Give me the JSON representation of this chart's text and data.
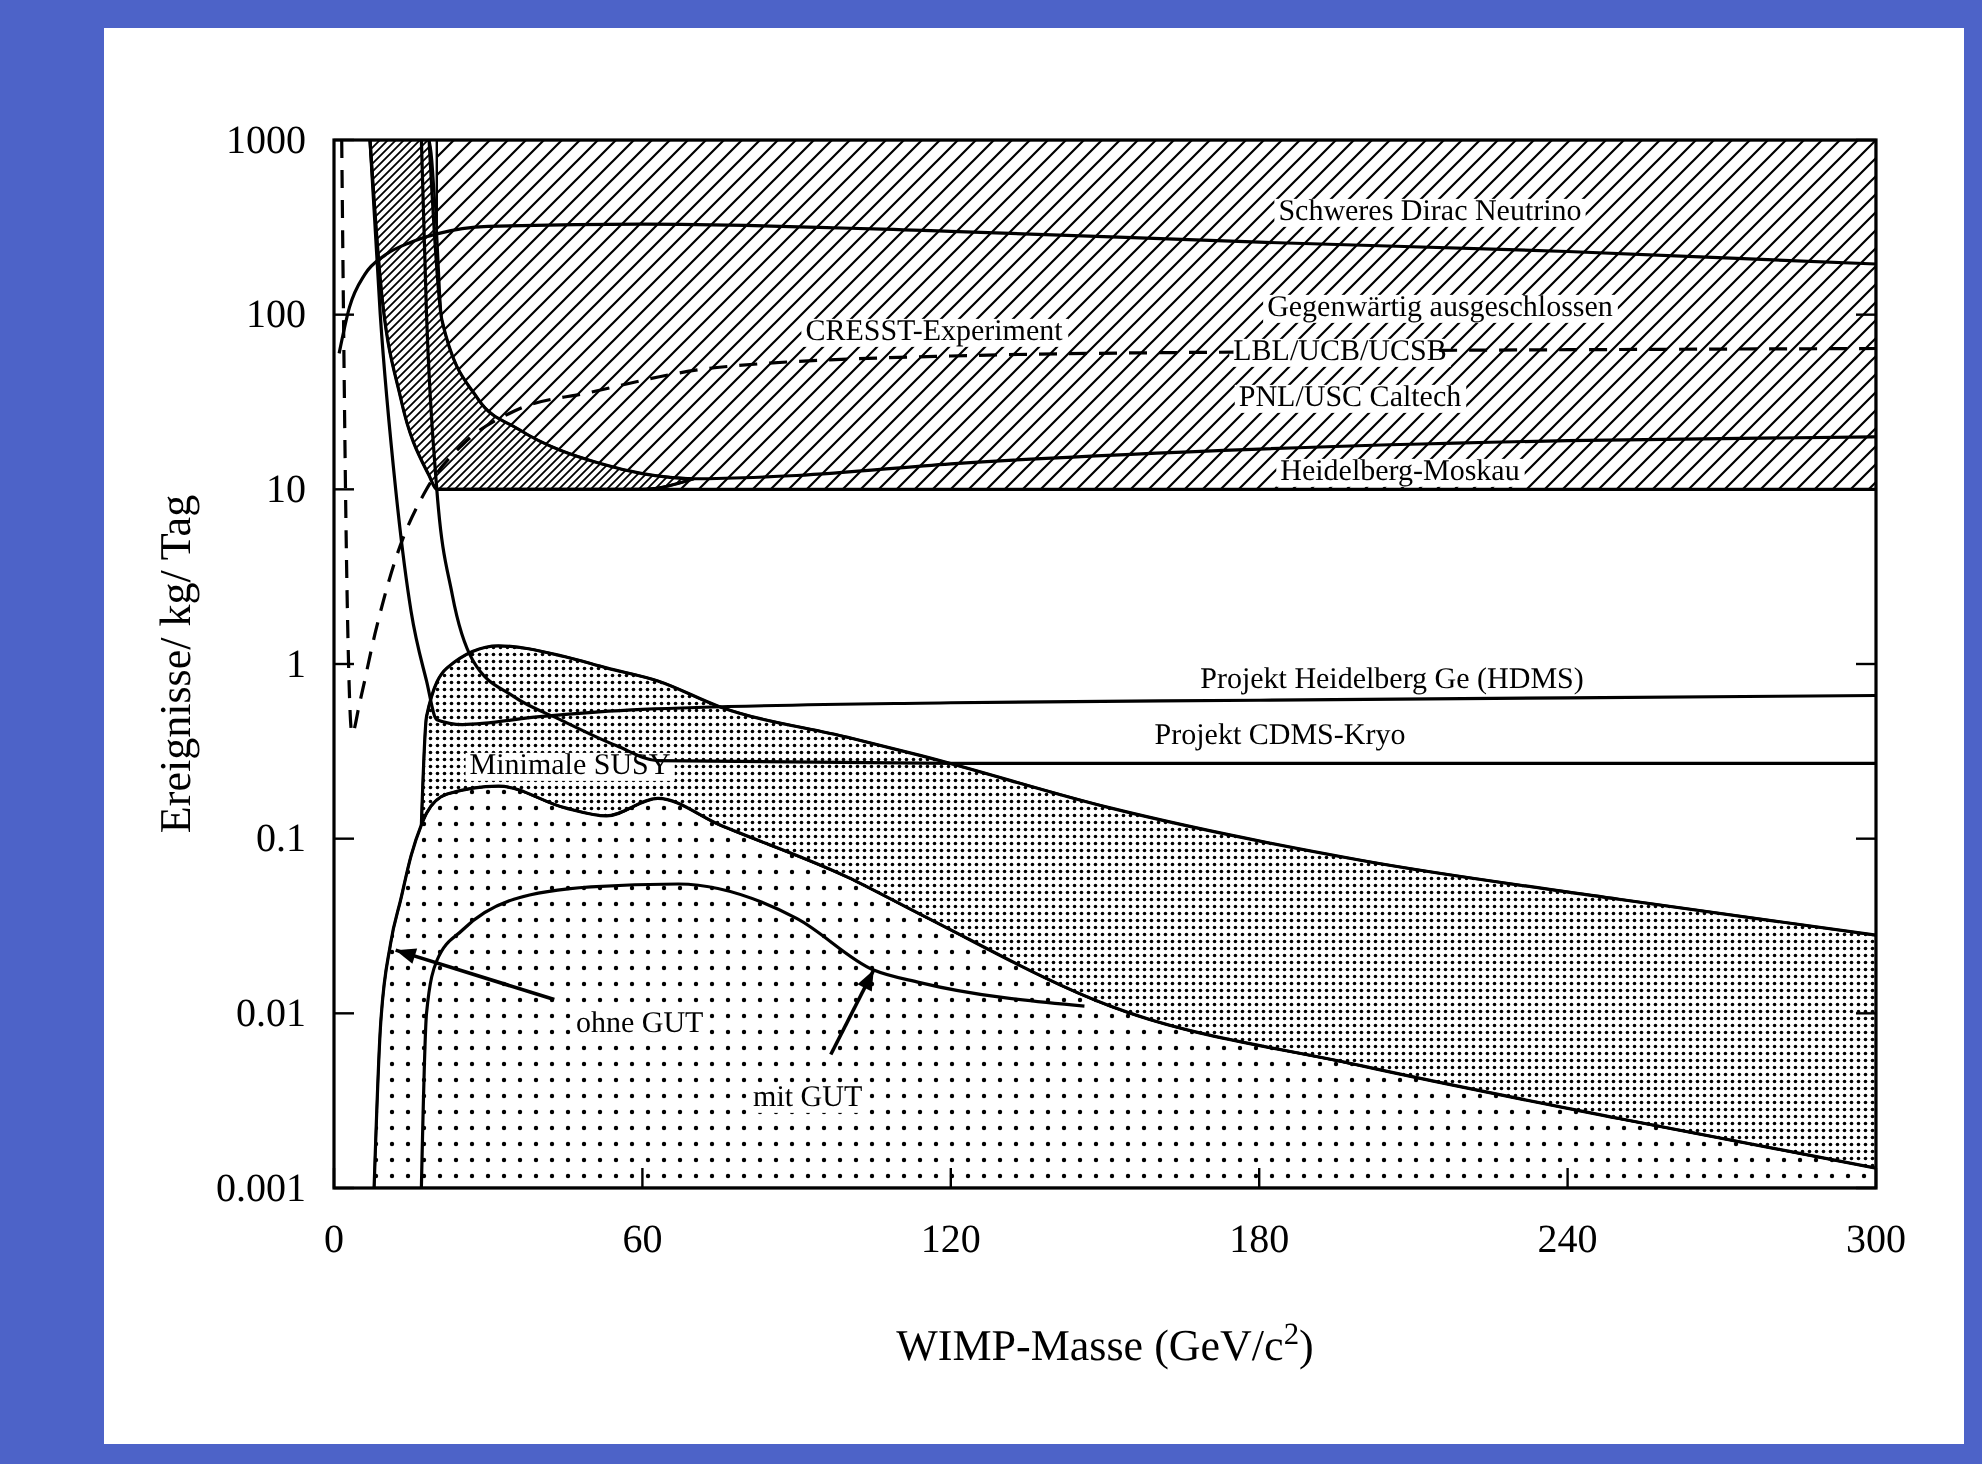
{
  "chart_data": {
    "type": "line",
    "xlabel": "WIMP-Masse (GeV/c$^{2}$)",
    "ylabel": "Ereignisse/ kg/ Tag",
    "log": "y",
    "xlim": [
      0,
      300
    ],
    "xticks": [
      0,
      60,
      120,
      180,
      240,
      300
    ],
    "ylim": [
      0.001,
      1000
    ],
    "yticks": [
      0.001,
      0.01,
      0.1,
      1,
      10,
      100,
      1000
    ],
    "grid": false,
    "series": [
      {
        "color": "#000000",
        "x": [
          20,
          300
        ],
        "values": [
          10,
          10
        ],
        "lower": [
          10,
          10
        ],
        "upper": [
          1000,
          1000
        ]
      },
      {
        "color": "#000000",
        "x": [
          7,
          9,
          13,
          18.5,
          20,
          21,
          28,
          36,
          52,
          60,
          70
        ],
        "values": [
          1000,
          160,
          33,
          12,
          10,
          10,
          10,
          10,
          10,
          10,
          11.5
        ],
        "lower": [
          1000,
          160,
          33,
          12,
          10,
          10,
          10,
          10,
          10,
          10,
          11.5
        ],
        "upper": [
          1000,
          1000,
          1000,
          1000,
          300,
          93,
          33,
          22,
          14,
          12.3,
          11.5
        ]
      },
      {
        "color": "#000000",
        "x": [
          7.8,
          9,
          11,
          13,
          15,
          17,
          18,
          22,
          32,
          45,
          53,
          63,
          75,
          100,
          114,
          151,
          200,
          250,
          300
        ],
        "values": [
          0.001,
          0.008,
          0.025,
          0.045,
          0.08,
          0.12,
          0.14,
          0.18,
          0.2,
          0.15,
          0.135,
          0.17,
          0.12,
          0.06,
          0.037,
          0.011,
          0.005,
          0.0025,
          0.0013
        ],
        "lower": [
          0.001,
          0.001,
          0.001,
          0.001,
          0.001,
          0.001,
          0.001,
          0.001,
          0.001,
          0.001,
          0.001,
          0.001,
          0.001,
          0.001,
          0.001,
          0.001,
          0.001,
          0.001,
          0.001
        ],
        "upper": [
          0.001,
          0.008,
          0.025,
          0.045,
          0.08,
          0.12,
          0.14,
          0.18,
          0.2,
          0.15,
          0.135,
          0.17,
          0.12,
          0.06,
          0.037,
          0.011,
          0.005,
          0.0025,
          0.0013
        ]
      },
      {
        "color": "#000000",
        "x": [
          17,
          18,
          22,
          32,
          45,
          53,
          63,
          75,
          100,
          114,
          151,
          200,
          250,
          300
        ],
        "values": [
          0.12,
          0.5,
          0.95,
          1.27,
          1.1,
          0.95,
          0.8,
          0.57,
          0.38,
          0.3,
          0.15,
          0.075,
          0.045,
          0.028
        ],
        "lower": [
          0.12,
          0.14,
          0.18,
          0.2,
          0.15,
          0.135,
          0.17,
          0.12,
          0.06,
          0.037,
          0.011,
          0.005,
          0.0025,
          0.0013
        ],
        "upper": [
          0.12,
          0.5,
          0.95,
          1.27,
          1.1,
          0.95,
          0.8,
          0.57,
          0.38,
          0.3,
          0.15,
          0.075,
          0.045,
          0.028
        ]
      },
      {
        "color": "#000000",
        "x": [
          18.5,
          21,
          28,
          36,
          52,
          60,
          70,
          90,
          120,
          180,
          240,
          300
        ],
        "values": [
          1000,
          93,
          33,
          22,
          14,
          12.3,
          11.5,
          12,
          14,
          17,
          19,
          20
        ]
      },
      {
        "color": "#000000",
        "x": [
          1,
          3,
          6,
          10,
          15,
          20,
          30,
          60,
          120,
          180,
          240,
          300
        ],
        "values": [
          60,
          110,
          170,
          220,
          260,
          290,
          320,
          330,
          300,
          260,
          230,
          195
        ]
      },
      {
        "color": "#000000",
        "line_style": "dashed",
        "x": [
          1.5,
          2.5,
          3.5,
          5,
          8,
          12,
          18,
          25,
          35,
          50,
          75,
          120,
          175,
          180,
          215,
          240,
          300
        ],
        "values": [
          1000,
          3,
          0.4,
          0.6,
          1.5,
          4,
          10,
          18,
          28,
          36,
          50,
          58,
          61,
          null,
          62.5,
          63,
          64
        ]
      },
      {
        "color": "#000000",
        "x": [
          7,
          9,
          12,
          15,
          18,
          20,
          25,
          40,
          60,
          120,
          180,
          240,
          300
        ],
        "values": [
          1000,
          100,
          10,
          2,
          0.8,
          0.48,
          0.45,
          0.5,
          0.55,
          0.6,
          0.62,
          0.64,
          0.66
        ]
      },
      {
        "color": "#000000",
        "x": [
          17,
          18,
          20,
          23,
          27,
          35,
          44,
          55,
          63,
          120,
          180,
          240,
          300
        ],
        "values": [
          1000,
          100,
          10,
          2.5,
          1.05,
          0.65,
          0.48,
          0.34,
          0.28,
          0.27,
          0.27,
          0.27,
          0.27
        ]
      },
      {
        "color": "#000000",
        "x": [
          17,
          18,
          20,
          25,
          35,
          50,
          67,
          90,
          105,
          114,
          146
        ],
        "values": [
          0.001,
          0.01,
          0.02,
          0.03,
          0.045,
          0.053,
          0.055,
          0.035,
          0.0177,
          0.015,
          0.011
        ]
      }
    ],
    "annotations": [
      "Schweres Dirac Neutrino",
      "Gegenwärtig ausgeschlossen",
      "LBL/UCB/UCSB",
      "PNL/USC Caltech",
      "Heidelberg-Moskau",
      "CRESST-Experiment",
      "Projekt Heidelberg Ge (HDMS)",
      "Projekt CDMS-Kryo",
      "Minimale SUSY",
      {
        "text": "ohne GUT",
        "x": 12,
        "y": 0.023
      },
      {
        "text": "mit GUT",
        "x": 105,
        "y": 0.0177
      }
    ]
  }
}
